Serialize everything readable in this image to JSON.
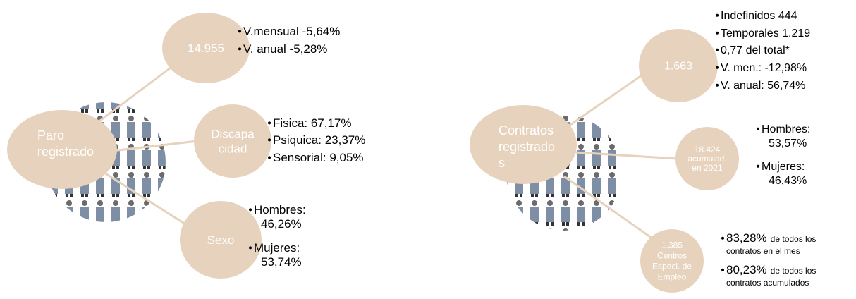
{
  "left": {
    "center": [
      "Paro",
      "registrado"
    ],
    "nodes": [
      {
        "label": [
          "14.955"
        ],
        "bullets": [
          [
            "V.mensual -5,64%"
          ],
          [
            "V. anual -5,28%"
          ]
        ]
      },
      {
        "label": [
          "Discapa",
          "cidad"
        ],
        "bullets": [
          [
            "Fisica: 67,17%"
          ],
          [
            "Psiquica: 23,37%"
          ],
          [
            "Sensorial: 9,05%"
          ]
        ]
      },
      {
        "label": [
          "Sexo"
        ],
        "bullets": [
          [
            "Hombres:",
            "46,26%"
          ],
          [
            "Mujeres:",
            "53,74%"
          ]
        ]
      }
    ]
  },
  "right": {
    "center": [
      "Contratos",
      "registrado",
      "s"
    ],
    "nodes": [
      {
        "label": [
          "1.663"
        ],
        "bullets": [
          [
            "Indefinidos 444"
          ],
          [
            "Temporales 1.219"
          ],
          [
            " 0,77 del total*"
          ],
          [
            "V. men.: -12,98%"
          ],
          [
            "V. anual: 56,74%"
          ]
        ]
      },
      {
        "label": [
          "18.424",
          "acumulad.",
          "en 2021"
        ],
        "bullets": [
          [
            "Hombres:",
            "53,57%"
          ],
          [
            "Mujeres:",
            "46,43%"
          ]
        ]
      },
      {
        "label": [
          "1.385",
          "Centros",
          "Especi. de",
          "Empleo"
        ],
        "bullets": [
          {
            "big": "83,28%",
            "small": [
              "de todos los",
              "contratos en el mes"
            ]
          },
          {
            "big": "80,23%",
            "small": [
              "de todos los",
              "contratos acumulados"
            ]
          }
        ]
      }
    ]
  }
}
